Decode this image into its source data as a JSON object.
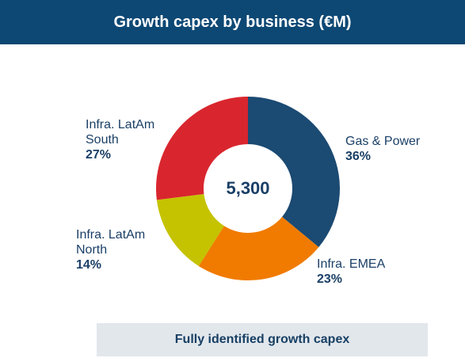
{
  "chart_data": {
    "type": "donut",
    "title": "Growth capex by business (€M)",
    "total_label": "5,300",
    "categories": [
      "Gas & Power",
      "Infra. EMEA",
      "Infra. LatAm North",
      "Infra. LatAm South"
    ],
    "values": [
      36,
      23,
      14,
      27
    ],
    "value_labels": [
      "36%",
      "23%",
      "14%",
      "27%"
    ],
    "colors": [
      "#1b4a72",
      "#f07b00",
      "#c5c300",
      "#d9262e"
    ],
    "footer": "Fully identified growth capex"
  }
}
